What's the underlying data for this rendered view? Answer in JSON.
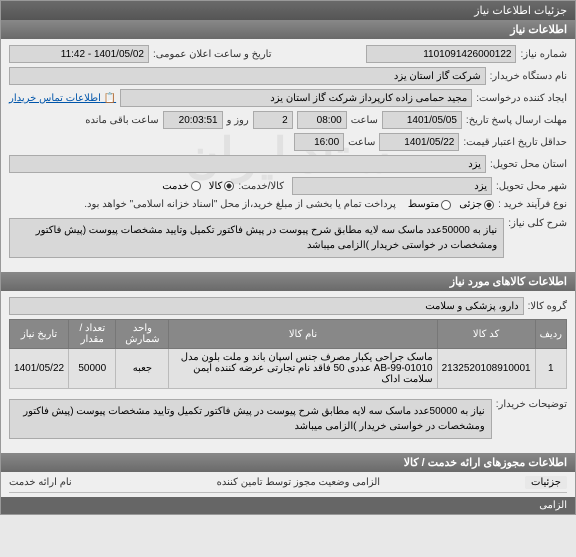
{
  "titlebar": "جزئیات اطلاعات نیاز",
  "section_info": "اطلاعات نیاز",
  "watermark": "ستاد ایران",
  "fields": {
    "need_no_label": "شماره نیاز:",
    "need_no": "1101091426000122",
    "announce_label": "تاریخ و ساعت اعلان عمومی:",
    "announce": "1401/05/02 - 11:42",
    "buyer_label": "نام دستگاه خریدار:",
    "buyer": "شرکت گاز استان یزد",
    "contact_link": "اطلاعات تماس خریدار",
    "requester_label": "ایجاد کننده درخواست:",
    "requester": "مجید حمامی زاده کارپرداز شرکت گاز استان یزد",
    "deadline_reply_label": "حداقل تاریخ اعتبار قیمت:",
    "deadline_reply_date": "1401/05/05",
    "deadline_reply_time_label": "ساعت",
    "deadline_reply_time": "08:00",
    "days_label": "روز و",
    "days": "2",
    "remaining_label": "ساعت باقی مانده",
    "remaining": "20:03:51",
    "validity_label": "مهلت ارسال پاسخ تاریخ:",
    "validity_date": "1401/05/22",
    "validity_time_label": "ساعت",
    "validity_time": "16:00",
    "need_province_label": "استان محل تحویل:",
    "need_province": "یزد",
    "need_city_label": "شهر محل تحویل:",
    "need_city": "یزد",
    "service_goods_label": "کالا/خدمت:",
    "purchase_type_label": "نوع فرآیند خرید :",
    "purchase_note": "پرداخت تمام یا بخشی از مبلغ خرید،از محل \"اسناد خزانه اسلامی\" خواهد بود.",
    "goods_radio": "کالا",
    "service_radio": "خدمت",
    "both_radio": "جزئی",
    "medium_radio": "متوسط"
  },
  "desc": {
    "label": "شرح کلی نیاز:",
    "text": "نیاز به 50000عدد ماسک سه لایه مطابق شرح پیوست در پیش فاکتور تکمیل وتایید مشخصات پیوست (پیش فاکتور ومشخصات در خواستی خریدار )الزامی میباشد"
  },
  "section_goods": "اطلاعات کالاهای مورد نیاز",
  "goods_group_label": "گروه کالا:",
  "goods_group": "دارو، پزشکی و سلامت",
  "table": {
    "headers": [
      "ردیف",
      "کد کالا",
      "نام کالا",
      "واحد شمارش",
      "تعداد / مقدار",
      "تاریخ نیاز"
    ],
    "rows": [
      [
        "1",
        "2132520108910001",
        "ماسک جراحی یکبار مصرف جنس اسپان باند و ملت بلون مدل AB-99-01010 عددی 50 فاقد نام تجارتی عرضه کننده ایمن سلامت اداک",
        "جعبه",
        "50000",
        "1401/05/22"
      ]
    ]
  },
  "buyer_desc_label": "توضیحات خریدار:",
  "buyer_desc": "نیاز به 50000عدد ماسک سه لایه مطابق شرح پیوست در پیش فاکتور تکمیل وتایید مشخصات پیوست (پیش فاکتور ومشخصات در خواستی خریدار )الزامی میباشد",
  "section_permits": "اطلاعات مجوزهای ارائه خدمت / کالا",
  "permit_status_label": "الزامی وضعیت مجوز توسط تامین کننده",
  "details_btn": "جزئیات",
  "service_name_label": "نام ارائه خدمت",
  "mandatory": "الزامی"
}
